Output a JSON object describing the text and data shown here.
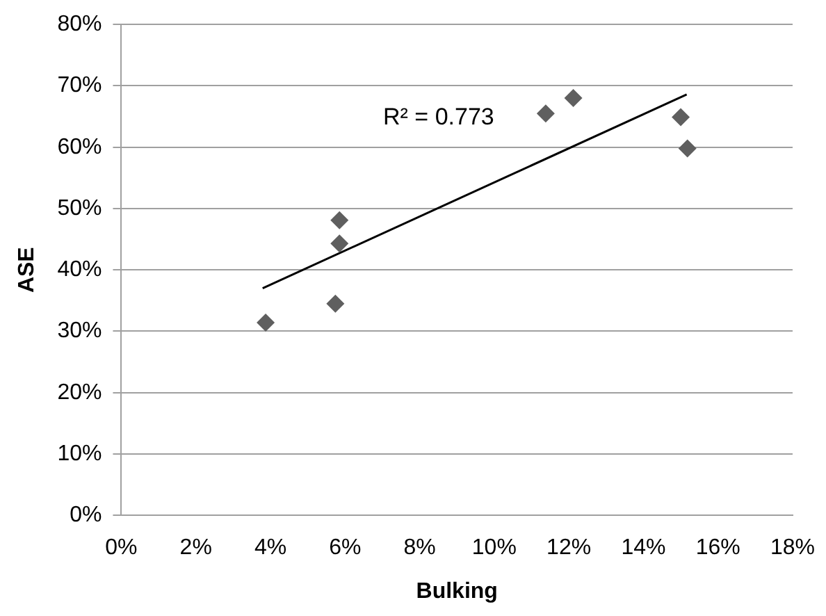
{
  "chart_data": {
    "type": "scatter",
    "xlabel": "Bulking",
    "ylabel": "ASE",
    "series": [
      {
        "type": "scatter",
        "color": "#5f5f5f",
        "x": [
          3.87,
          5.74,
          5.85,
          5.85,
          11.38,
          12.12,
          15.0,
          15.18
        ],
        "values": [
          31.4,
          34.5,
          48.1,
          44.3,
          65.5,
          68.0,
          64.9,
          59.8
        ]
      },
      {
        "type": "line",
        "color": "#000000",
        "x": [
          3.79,
          15.16
        ],
        "values": [
          37.0,
          68.6
        ],
        "marker": "none"
      }
    ],
    "xlim": [
      0,
      18
    ],
    "xticks": [
      {
        "value": 0,
        "label": "0%"
      },
      {
        "value": 2,
        "label": "2%"
      },
      {
        "value": 4,
        "label": "4%"
      },
      {
        "value": 6,
        "label": "6%"
      },
      {
        "value": 8,
        "label": "8%"
      },
      {
        "value": 10,
        "label": "10%"
      },
      {
        "value": 12,
        "label": "12%"
      },
      {
        "value": 14,
        "label": "14%"
      },
      {
        "value": 16,
        "label": "16%"
      },
      {
        "value": 18,
        "label": "18%"
      }
    ],
    "ylim": [
      0,
      80
    ],
    "yticks": [
      {
        "value": 0,
        "label": "0%"
      },
      {
        "value": 10,
        "label": "10%"
      },
      {
        "value": 20,
        "label": "20%"
      },
      {
        "value": 30,
        "label": "30%"
      },
      {
        "value": 40,
        "label": "40%"
      },
      {
        "value": 50,
        "label": "50%"
      },
      {
        "value": 60,
        "label": "60%"
      },
      {
        "value": 70,
        "label": "70%"
      },
      {
        "value": 80,
        "label": "80%"
      }
    ],
    "grid": "y",
    "legend": false,
    "marker": "diamond",
    "annotations": [
      "R² = 0.773"
    ]
  }
}
